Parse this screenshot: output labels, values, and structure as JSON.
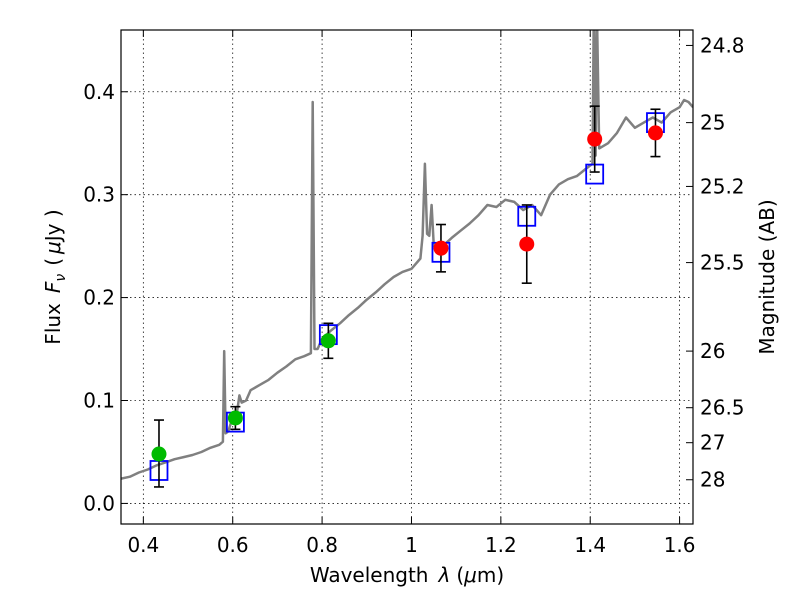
{
  "chart_data": {
    "type": "scatter",
    "xlabel_text": "Wavelength",
    "xlabel_symbol": "λ",
    "xlabel_unit_open": "(",
    "xlabel_unit_mu": "μ",
    "xlabel_unit_rest": "m)",
    "ylabel_text": "Flux",
    "ylabel_symbol": "F",
    "ylabel_sub": "ν",
    "ylabel_unit_open": "(",
    "ylabel_unit_mu": "μ",
    "ylabel_unit_rest": "Jy )",
    "y2label": "Magnitude (AB)",
    "xlim": [
      0.35,
      1.63
    ],
    "ylim": [
      -0.02,
      0.46
    ],
    "x_ticks": [
      0.4,
      0.6,
      0.8,
      1.0,
      1.2,
      1.4,
      1.6
    ],
    "x_tick_labels": [
      "0.4",
      "0.6",
      "0.8",
      "1",
      "1.2",
      "1.4",
      "1.6"
    ],
    "y_ticks": [
      0.0,
      0.1,
      0.2,
      0.3,
      0.4
    ],
    "y_tick_labels": [
      "0.0",
      "0.1",
      "0.2",
      "0.3",
      "0.4"
    ],
    "y2_ticks": [
      {
        "label": "24.8",
        "flux": 0.445
      },
      {
        "label": "25",
        "flux": 0.37
      },
      {
        "label": "25.2",
        "flux": 0.308
      },
      {
        "label": "25.5",
        "flux": 0.234
      },
      {
        "label": "26",
        "flux": 0.148
      },
      {
        "label": "26.5",
        "flux": 0.093
      },
      {
        "label": "27",
        "flux": 0.059
      },
      {
        "label": "28",
        "flux": 0.023
      }
    ],
    "grid": true,
    "colors": {
      "spectrum": "#808080",
      "green_points": "#00bb00",
      "red_points": "#ff0000",
      "model_boxes": "#0000ff",
      "errorbars": "#000000"
    },
    "series": [
      {
        "kind": "line",
        "points": [
          [
            0.35,
            0.024
          ],
          [
            0.37,
            0.026
          ],
          [
            0.39,
            0.03
          ],
          [
            0.41,
            0.033
          ],
          [
            0.43,
            0.037
          ],
          [
            0.45,
            0.04
          ],
          [
            0.47,
            0.043
          ],
          [
            0.49,
            0.045
          ],
          [
            0.51,
            0.047
          ],
          [
            0.53,
            0.05
          ],
          [
            0.55,
            0.054
          ],
          [
            0.57,
            0.057
          ],
          [
            0.578,
            0.06
          ],
          [
            0.581,
            0.148
          ],
          [
            0.584,
            0.068
          ],
          [
            0.59,
            0.07
          ],
          [
            0.6,
            0.084
          ],
          [
            0.61,
            0.09
          ],
          [
            0.615,
            0.105
          ],
          [
            0.62,
            0.098
          ],
          [
            0.63,
            0.1
          ],
          [
            0.64,
            0.11
          ],
          [
            0.66,
            0.115
          ],
          [
            0.68,
            0.12
          ],
          [
            0.7,
            0.127
          ],
          [
            0.72,
            0.133
          ],
          [
            0.74,
            0.14
          ],
          [
            0.76,
            0.143
          ],
          [
            0.775,
            0.146
          ],
          [
            0.779,
            0.39
          ],
          [
            0.783,
            0.15
          ],
          [
            0.79,
            0.15
          ],
          [
            0.8,
            0.16
          ],
          [
            0.82,
            0.168
          ],
          [
            0.84,
            0.175
          ],
          [
            0.86,
            0.183
          ],
          [
            0.88,
            0.19
          ],
          [
            0.9,
            0.198
          ],
          [
            0.92,
            0.205
          ],
          [
            0.94,
            0.213
          ],
          [
            0.96,
            0.22
          ],
          [
            0.98,
            0.225
          ],
          [
            1.0,
            0.228
          ],
          [
            1.02,
            0.238
          ],
          [
            1.025,
            0.26
          ],
          [
            1.03,
            0.33
          ],
          [
            1.035,
            0.262
          ],
          [
            1.04,
            0.26
          ],
          [
            1.045,
            0.29
          ],
          [
            1.05,
            0.25
          ],
          [
            1.07,
            0.25
          ],
          [
            1.09,
            0.258
          ],
          [
            1.11,
            0.265
          ],
          [
            1.13,
            0.272
          ],
          [
            1.15,
            0.28
          ],
          [
            1.17,
            0.29
          ],
          [
            1.19,
            0.288
          ],
          [
            1.21,
            0.295
          ],
          [
            1.23,
            0.293
          ],
          [
            1.25,
            0.285
          ],
          [
            1.27,
            0.29
          ],
          [
            1.29,
            0.28
          ],
          [
            1.31,
            0.3
          ],
          [
            1.33,
            0.31
          ],
          [
            1.35,
            0.315
          ],
          [
            1.37,
            0.318
          ],
          [
            1.39,
            0.325
          ],
          [
            1.405,
            0.33
          ],
          [
            1.408,
            0.48
          ],
          [
            1.412,
            0.338
          ],
          [
            1.415,
            0.48
          ],
          [
            1.42,
            0.345
          ],
          [
            1.44,
            0.35
          ],
          [
            1.46,
            0.36
          ],
          [
            1.48,
            0.375
          ],
          [
            1.5,
            0.365
          ],
          [
            1.52,
            0.37
          ],
          [
            1.54,
            0.375
          ],
          [
            1.56,
            0.37
          ],
          [
            1.58,
            0.38
          ],
          [
            1.6,
            0.385
          ],
          [
            1.61,
            0.392
          ],
          [
            1.62,
            0.39
          ],
          [
            1.63,
            0.385
          ]
        ]
      },
      {
        "kind": "points",
        "marker": "circle",
        "color": "#00bb00",
        "points": [
          {
            "x": 0.435,
            "y": 0.048,
            "yerr_low": 0.032,
            "yerr_high": 0.033
          },
          {
            "x": 0.606,
            "y": 0.083,
            "yerr_low": 0.011,
            "yerr_high": 0.011
          },
          {
            "x": 0.814,
            "y": 0.158,
            "yerr_low": 0.017,
            "yerr_high": 0.017
          }
        ]
      },
      {
        "kind": "points",
        "marker": "circle",
        "color": "#ff0000",
        "points": [
          {
            "x": 1.066,
            "y": 0.248,
            "yerr_low": 0.023,
            "yerr_high": 0.023
          },
          {
            "x": 1.258,
            "y": 0.252,
            "yerr_low": 0.038,
            "yerr_high": 0.038
          },
          {
            "x": 1.41,
            "y": 0.354,
            "yerr_low": 0.032,
            "yerr_high": 0.032
          },
          {
            "x": 1.546,
            "y": 0.36,
            "yerr_low": 0.023,
            "yerr_high": 0.023
          }
        ]
      },
      {
        "kind": "points",
        "marker": "open-square",
        "color": "#0000ff",
        "points": [
          {
            "x": 0.435,
            "y": 0.032
          },
          {
            "x": 0.606,
            "y": 0.079
          },
          {
            "x": 0.814,
            "y": 0.164
          },
          {
            "x": 1.066,
            "y": 0.244
          },
          {
            "x": 1.258,
            "y": 0.279
          },
          {
            "x": 1.41,
            "y": 0.32
          },
          {
            "x": 1.546,
            "y": 0.37
          }
        ]
      }
    ]
  }
}
